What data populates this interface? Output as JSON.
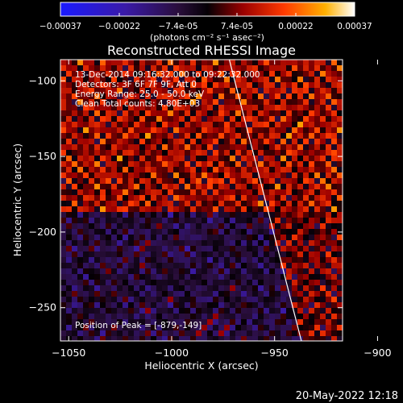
{
  "chart_data": {
    "type": "heatmap",
    "title": "Reconstructed RHESSI Image",
    "xlabel": "Heliocentric X (arcsec)",
    "ylabel": "Heliocentric Y (arcsec)",
    "xlim": [
      -1054,
      -917
    ],
    "ylim": [
      -272,
      -86
    ],
    "xticks": [
      -1050,
      -1000,
      -950,
      -900
    ],
    "yticks": [
      -100,
      -150,
      -200,
      -250
    ],
    "grid": false,
    "colorbar": {
      "ticks": [
        "-0.00037",
        "-0.00022",
        "-7.4e-05",
        "7.4e-05",
        "0.00022",
        "0.00037"
      ],
      "range": [
        -0.00037,
        0.00037
      ],
      "units": "(photons cm⁻² s⁻¹ asec⁻²)"
    },
    "annotations": {
      "time": "13-Dec-2014 09:16:32.000 to 09:22:32.000",
      "detectors": "Detectors: 3F 6F 7F 9F, Att 0",
      "energy": "Energy Range: 25.0 - 50.0 keV",
      "clean": "Clean    Total counts: 4.80E+03",
      "peak": "Position of Peak = [-879,-149]"
    },
    "limb_line": {
      "top_x": -972,
      "bottom_x": -937
    },
    "peak": {
      "x": -879,
      "y": -149
    }
  },
  "footer": {
    "date": "20-May-2022 12:18"
  }
}
